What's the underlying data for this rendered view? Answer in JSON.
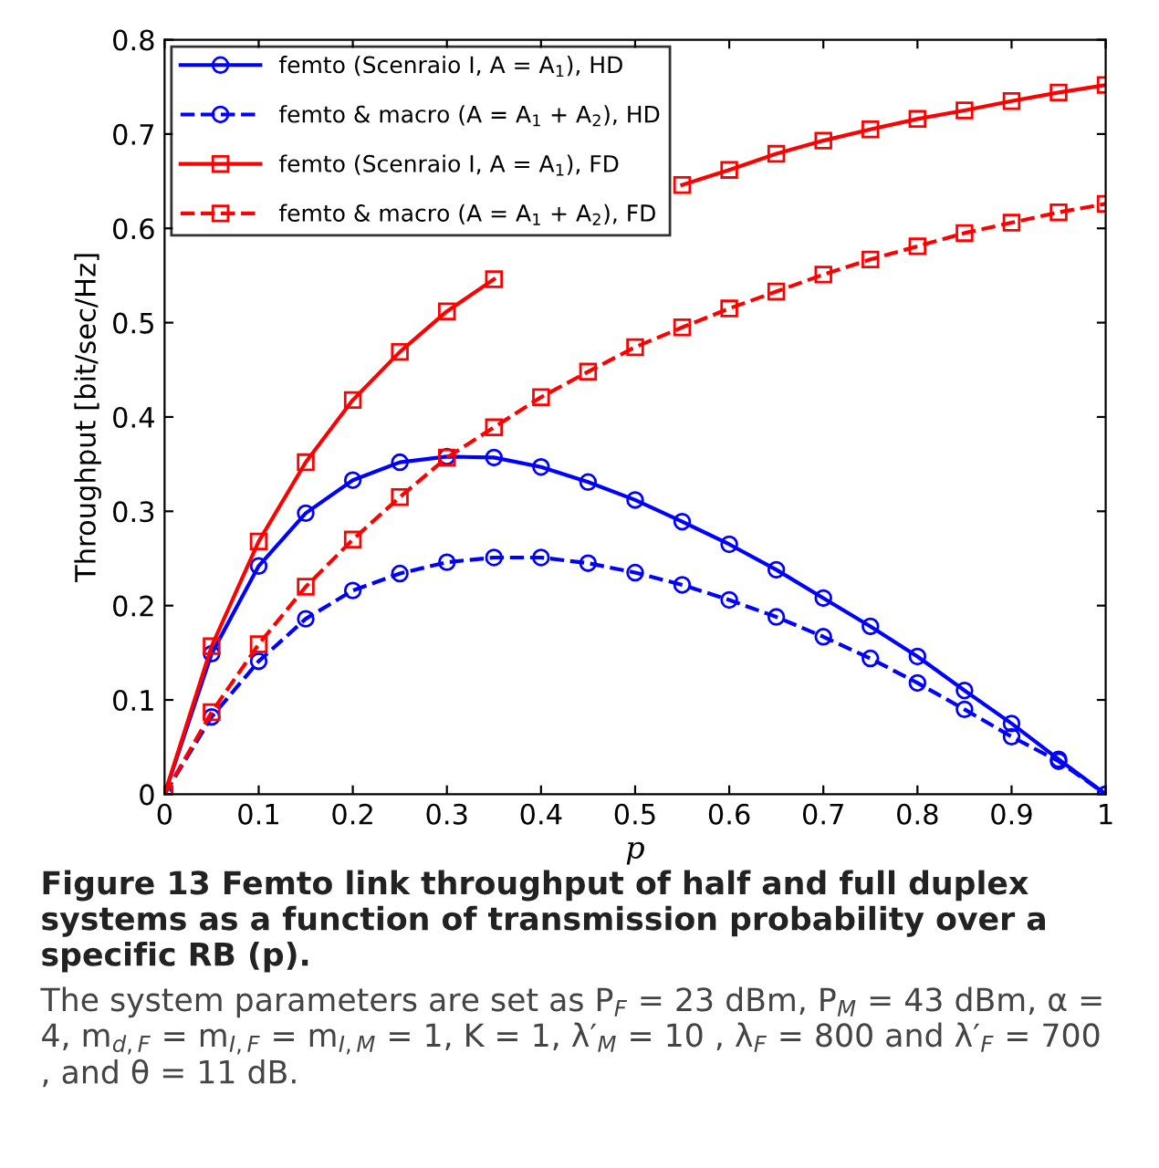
{
  "chart_data": {
    "type": "line",
    "xlabel": "p",
    "ylabel": "Throughput [bit/sec/Hz]",
    "x": [
      0,
      0.05,
      0.1,
      0.15,
      0.2,
      0.25,
      0.3,
      0.35,
      0.4,
      0.45,
      0.5,
      0.55,
      0.6,
      0.65,
      0.7,
      0.75,
      0.8,
      0.85,
      0.9,
      0.95,
      1
    ],
    "series": [
      {
        "name": "femto (Scenraio I, A = A$_{1}$), HD",
        "color": "#0000ff",
        "marker": "circle",
        "line_style": "solid",
        "values": [
          0,
          0.149,
          0.242,
          0.298,
          0.333,
          0.352,
          0.358,
          0.357,
          0.347,
          0.331,
          0.312,
          0.289,
          0.265,
          0.238,
          0.208,
          0.178,
          0.146,
          0.11,
          0.075,
          0.037,
          0
        ]
      },
      {
        "name": "femto & macro (A = A$_{1}$ + A$_{2}$), HD",
        "color": "#0000ff",
        "marker": "circle",
        "line_style": "dashed",
        "values": [
          0,
          0.082,
          0.141,
          0.186,
          0.216,
          0.234,
          0.246,
          0.251,
          0.251,
          0.245,
          0.235,
          0.222,
          0.206,
          0.188,
          0.167,
          0.144,
          0.118,
          0.09,
          0.061,
          0.035,
          0
        ]
      },
      {
        "name": "femto (Scenraio I, A = A$_{1}$), FD",
        "color": "#ff0000",
        "marker": "square",
        "line_style": "solid",
        "values": [
          0,
          0.157,
          0.268,
          0.352,
          0.418,
          0.469,
          0.512,
          0.546,
          null,
          null,
          null,
          0.646,
          0.662,
          0.679,
          0.693,
          0.705,
          0.716,
          0.725,
          0.735,
          0.744,
          0.752
        ]
      },
      {
        "name": "femto & macro (A = A$_{1}$ + A$_{2}$), FD",
        "color": "#ff0000",
        "marker": "square",
        "line_style": "dashed",
        "values": [
          0,
          0.087,
          0.159,
          0.22,
          0.27,
          0.315,
          0.357,
          0.389,
          0.421,
          0.448,
          0.474,
          0.495,
          0.515,
          0.533,
          0.551,
          0.567,
          0.581,
          0.595,
          0.606,
          0.617,
          0.626
        ]
      }
    ],
    "xlim": [
      0,
      1
    ],
    "xticks": [
      0,
      0.1,
      0.2,
      0.3,
      0.4,
      0.5,
      0.6,
      0.7,
      0.8,
      0.9,
      1
    ],
    "ylim": [
      0,
      0.8
    ],
    "yticks": [
      0,
      0.1,
      0.2,
      0.3,
      0.4,
      0.5,
      0.6,
      0.7,
      0.8
    ],
    "grid": false,
    "legend": "top left",
    "annotations": [
      "Figure 13 Femto link throughput of half and full duplex systems as a function of transmission probability over a specific RB (p).",
      "The system parameters are set as P$_{F}$ = 23 dBm, P$_{M}$ = 43 dBm, α = 4, m$_{d,F}$ = m$_{I,F}$ = m$_{I,M}$ = 1, K = 1, λ′$_{M}$ = 10 , λ$_{F}$ = 800 and λ′$_{F}$ = 700 , and θ = 11 dB."
    ]
  }
}
